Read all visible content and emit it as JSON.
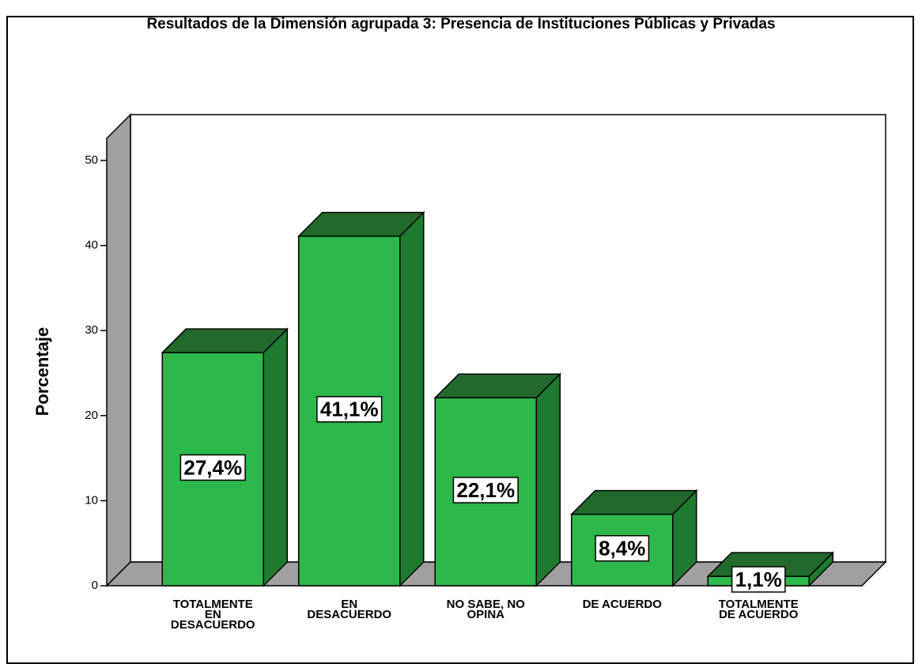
{
  "chart_data": {
    "type": "bar3d",
    "title": "Resultados de la Dimensión agrupada 3: Presencia de Instituciones Públicas y Privadas",
    "ylabel": "Porcentaje",
    "categories": [
      "TOTALMENTE EN DESACUERDO",
      "EN DESACUERDO",
      "NO SABE, NO OPINA",
      "DE ACUERDO",
      "TOTALMENTE DE ACUERDO"
    ],
    "values": [
      27.4,
      41.1,
      22.1,
      8.4,
      1.1
    ],
    "value_labels": [
      "27,4%",
      "41,1%",
      "22,1%",
      "8,4%",
      "1,1%"
    ],
    "color": "#2db84b",
    "side_color": "#1e7a2e",
    "top_color": "#216a2c",
    "ylim": [
      0,
      52.6
    ],
    "yticks": [
      0,
      10,
      20,
      30,
      40,
      50
    ]
  }
}
